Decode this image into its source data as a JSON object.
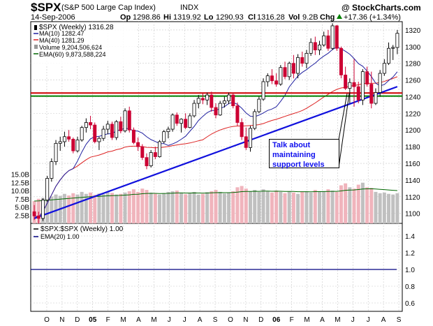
{
  "header": {
    "symbol": "$SPX",
    "name": "(S&P 500 Large Cap Index)",
    "exchange": "INDX",
    "watermark": "@ StockCharts.com",
    "date": "14-Sep-2006",
    "op_label": "Op",
    "op": "1298.86",
    "hi_label": "Hi",
    "hi": "1319.92",
    "lo_label": "Lo",
    "lo": "1290.93",
    "cl_label": "Cl",
    "cl": "1316.28",
    "vol_label": "Vol",
    "vol": "9.2B",
    "chg_label": "Chg",
    "chg": "+17.36 (+1.34%)",
    "chg_arrow": "triangle-up-icon"
  },
  "colors": {
    "price_up": "#000000",
    "price_down": "#cc0033",
    "ma10": "#2020a0",
    "ma40": "#dd2222",
    "ema60": "#006600",
    "vol_up": "#c0c0c0",
    "vol_down": "#f0b4bc",
    "support_red": "#cc0000",
    "support_green": "#008000",
    "trend": "#1010dd",
    "ratio": "#000080"
  },
  "legend": [
    {
      "text": "$SPX (Weekly) 1316.28",
      "color": "#000000",
      "icon": "candle-icon"
    },
    {
      "text": "MA(10) 1282.47",
      "color": "#2020a0",
      "icon": "line-icon"
    },
    {
      "text": "MA(40) 1281.29",
      "color": "#dd2222",
      "icon": "line-icon"
    },
    {
      "text": "Volume 9,204,506,624",
      "color": "#555555",
      "icon": "volume-icon"
    },
    {
      "text": "EMA(60) 9,873,588,224",
      "color": "#006600",
      "icon": "line-icon"
    }
  ],
  "lower_legend": [
    {
      "text": "$SPX:$SPX (Weekly) 1.00",
      "color": "#000000"
    },
    {
      "text": "EMA(20) 1.00",
      "color": "#000080"
    }
  ],
  "annotation": [
    "Talk about",
    "maintaining",
    "support levels"
  ],
  "chart_data": {
    "type": "candlestick",
    "title": "$SPX (S&P 500 Large Cap Index) INDX",
    "interval": "weekly",
    "x_labels": [
      "O",
      "N",
      "D",
      "05",
      "F",
      "M",
      "A",
      "M",
      "J",
      "J",
      "A",
      "S",
      "O",
      "N",
      "D",
      "06",
      "F",
      "M",
      "A",
      "M",
      "J",
      "J",
      "A",
      "S"
    ],
    "price_axis": {
      "ticks": [
        1100,
        1120,
        1140,
        1160,
        1180,
        1200,
        1220,
        1240,
        1260,
        1280,
        1300,
        1320
      ],
      "range": [
        1088,
        1330
      ]
    },
    "volume_axis": {
      "ticks": [
        "2.5B",
        "5.0B",
        "7.5B",
        "10.0B",
        "12.5B",
        "15.0B"
      ],
      "values_billions": [
        2.5,
        5,
        7.5,
        10,
        12.5,
        15
      ]
    },
    "ratio_axis": {
      "ticks": [
        0.6,
        0.8,
        1.0,
        1.2,
        1.4
      ],
      "range": [
        0.5,
        1.55
      ]
    },
    "candles": [
      [
        1102,
        1110,
        1092,
        1097
      ],
      [
        1097,
        1102,
        1088,
        1094
      ],
      [
        1094,
        1118,
        1091,
        1116
      ],
      [
        1116,
        1145,
        1114,
        1142
      ],
      [
        1142,
        1166,
        1138,
        1162
      ],
      [
        1162,
        1188,
        1158,
        1184
      ],
      [
        1184,
        1192,
        1175,
        1186
      ],
      [
        1186,
        1198,
        1180,
        1192
      ],
      [
        1192,
        1200,
        1186,
        1189
      ],
      [
        1189,
        1191,
        1172,
        1175
      ],
      [
        1175,
        1192,
        1173,
        1188
      ],
      [
        1188,
        1205,
        1186,
        1203
      ],
      [
        1203,
        1214,
        1197,
        1209
      ],
      [
        1209,
        1217,
        1201,
        1206
      ],
      [
        1206,
        1209,
        1184,
        1186
      ],
      [
        1186,
        1192,
        1176,
        1190
      ],
      [
        1190,
        1205,
        1187,
        1201
      ],
      [
        1201,
        1211,
        1195,
        1207
      ],
      [
        1207,
        1210,
        1188,
        1191
      ],
      [
        1191,
        1212,
        1188,
        1210
      ],
      [
        1210,
        1216,
        1196,
        1199
      ],
      [
        1199,
        1226,
        1197,
        1223
      ],
      [
        1223,
        1228,
        1197,
        1200
      ],
      [
        1200,
        1203,
        1183,
        1185
      ],
      [
        1185,
        1191,
        1175,
        1180
      ],
      [
        1180,
        1183,
        1164,
        1167
      ],
      [
        1167,
        1172,
        1153,
        1157
      ],
      [
        1157,
        1176,
        1155,
        1173
      ],
      [
        1173,
        1180,
        1165,
        1168
      ],
      [
        1168,
        1188,
        1167,
        1186
      ],
      [
        1186,
        1200,
        1184,
        1198
      ],
      [
        1198,
        1204,
        1190,
        1201
      ],
      [
        1201,
        1220,
        1198,
        1218
      ],
      [
        1218,
        1221,
        1205,
        1208
      ],
      [
        1208,
        1214,
        1197,
        1213
      ],
      [
        1213,
        1220,
        1201,
        1203
      ],
      [
        1203,
        1220,
        1202,
        1217
      ],
      [
        1217,
        1236,
        1215,
        1232
      ],
      [
        1232,
        1242,
        1226,
        1238
      ],
      [
        1238,
        1244,
        1231,
        1236
      ],
      [
        1236,
        1245,
        1230,
        1242
      ],
      [
        1242,
        1246,
        1222,
        1227
      ],
      [
        1227,
        1232,
        1214,
        1218
      ],
      [
        1218,
        1235,
        1217,
        1232
      ],
      [
        1232,
        1240,
        1227,
        1235
      ],
      [
        1235,
        1245,
        1231,
        1242
      ],
      [
        1242,
        1245,
        1226,
        1229
      ],
      [
        1229,
        1233,
        1205,
        1209
      ],
      [
        1209,
        1214,
        1188,
        1192
      ],
      [
        1192,
        1203,
        1176,
        1179
      ],
      [
        1179,
        1205,
        1174,
        1202
      ],
      [
        1202,
        1225,
        1200,
        1222
      ],
      [
        1222,
        1240,
        1220,
        1237
      ],
      [
        1237,
        1262,
        1235,
        1258
      ],
      [
        1258,
        1268,
        1252,
        1265
      ],
      [
        1265,
        1273,
        1255,
        1259
      ],
      [
        1259,
        1268,
        1252,
        1255
      ],
      [
        1255,
        1278,
        1253,
        1275
      ],
      [
        1275,
        1282,
        1261,
        1264
      ],
      [
        1264,
        1282,
        1260,
        1280
      ],
      [
        1280,
        1290,
        1262,
        1268
      ],
      [
        1268,
        1291,
        1262,
        1287
      ],
      [
        1287,
        1294,
        1276,
        1280
      ],
      [
        1280,
        1296,
        1274,
        1292
      ],
      [
        1292,
        1310,
        1289,
        1305
      ],
      [
        1305,
        1312,
        1290,
        1296
      ],
      [
        1296,
        1307,
        1290,
        1302
      ],
      [
        1302,
        1318,
        1300,
        1313
      ],
      [
        1313,
        1320,
        1295,
        1298
      ],
      [
        1298,
        1328,
        1296,
        1325
      ],
      [
        1325,
        1326,
        1295,
        1298
      ],
      [
        1298,
        1300,
        1262,
        1266
      ],
      [
        1266,
        1276,
        1248,
        1250
      ],
      [
        1250,
        1262,
        1232,
        1257
      ],
      [
        1257,
        1285,
        1228,
        1252
      ],
      [
        1252,
        1258,
        1232,
        1236
      ],
      [
        1236,
        1273,
        1230,
        1270
      ],
      [
        1270,
        1276,
        1252,
        1255
      ],
      [
        1255,
        1270,
        1226,
        1232
      ],
      [
        1232,
        1250,
        1230,
        1245
      ],
      [
        1245,
        1272,
        1240,
        1268
      ],
      [
        1268,
        1285,
        1265,
        1280
      ],
      [
        1280,
        1305,
        1278,
        1298
      ],
      [
        1298,
        1302,
        1284,
        1299
      ],
      [
        1299,
        1320,
        1291,
        1316
      ]
    ],
    "volume_billions": [
      6.8,
      7.5,
      7.8,
      8.6,
      8.2,
      8.8,
      8.4,
      9.0,
      8.5,
      9.2,
      8.8,
      9.6,
      9.0,
      9.4,
      8.7,
      9.1,
      8.9,
      9.5,
      9.3,
      8.8,
      9.0,
      9.4,
      9.8,
      10.4,
      9.6,
      10.6,
      10.2,
      9.4,
      9.0,
      8.8,
      9.2,
      9.6,
      9.8,
      10.0,
      9.4,
      8.9,
      9.3,
      9.6,
      8.8,
      9.0,
      9.5,
      9.8,
      10.2,
      9.6,
      9.1,
      9.4,
      9.8,
      11.0,
      11.4,
      10.6,
      9.8,
      10.2,
      9.6,
      10.4,
      9.8,
      9.4,
      10.0,
      9.6,
      9.2,
      9.8,
      9.4,
      9.0,
      9.6,
      9.8,
      9.4,
      10.2,
      9.6,
      9.8,
      10.4,
      10.0,
      9.6,
      11.6,
      12.2,
      11.0,
      10.6,
      11.8,
      12.4,
      11.0,
      10.8,
      9.6,
      9.2,
      9.4,
      9.0,
      8.8,
      9.2
    ],
    "ratio": 1.0,
    "support_levels": [
      {
        "name": "red horizontal support",
        "value": 1244,
        "color": "#cc0000"
      },
      {
        "name": "green horizontal support",
        "value": 1242,
        "color": "#008000"
      }
    ],
    "trendline": {
      "from": [
        0,
        1094
      ],
      "to": [
        84,
        1252
      ]
    }
  }
}
